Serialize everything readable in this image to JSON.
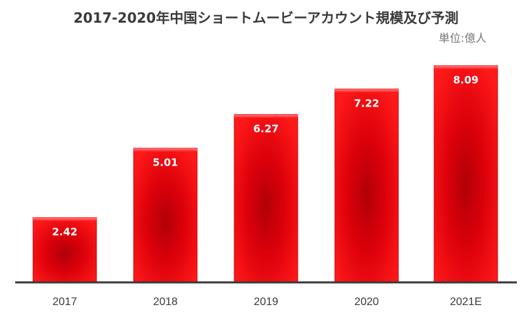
{
  "chart_data": {
    "type": "bar",
    "title": "2017-2020年中国ショートムービーアカウント規模及び予測",
    "unit": "単位:億人",
    "categories": [
      "2017",
      "2018",
      "2019",
      "2020",
      "2021E"
    ],
    "values": [
      2.42,
      5.01,
      6.27,
      7.22,
      8.09
    ],
    "value_labels": [
      "2.42",
      "5.01",
      "6.27",
      "7.22",
      "8.09"
    ],
    "ylim": [
      0,
      9.0
    ],
    "grid": false,
    "legend": "none",
    "bar_color": "#e8000b",
    "bar_dark_color": "#a50006",
    "axis_color": "#3a3a3a"
  }
}
